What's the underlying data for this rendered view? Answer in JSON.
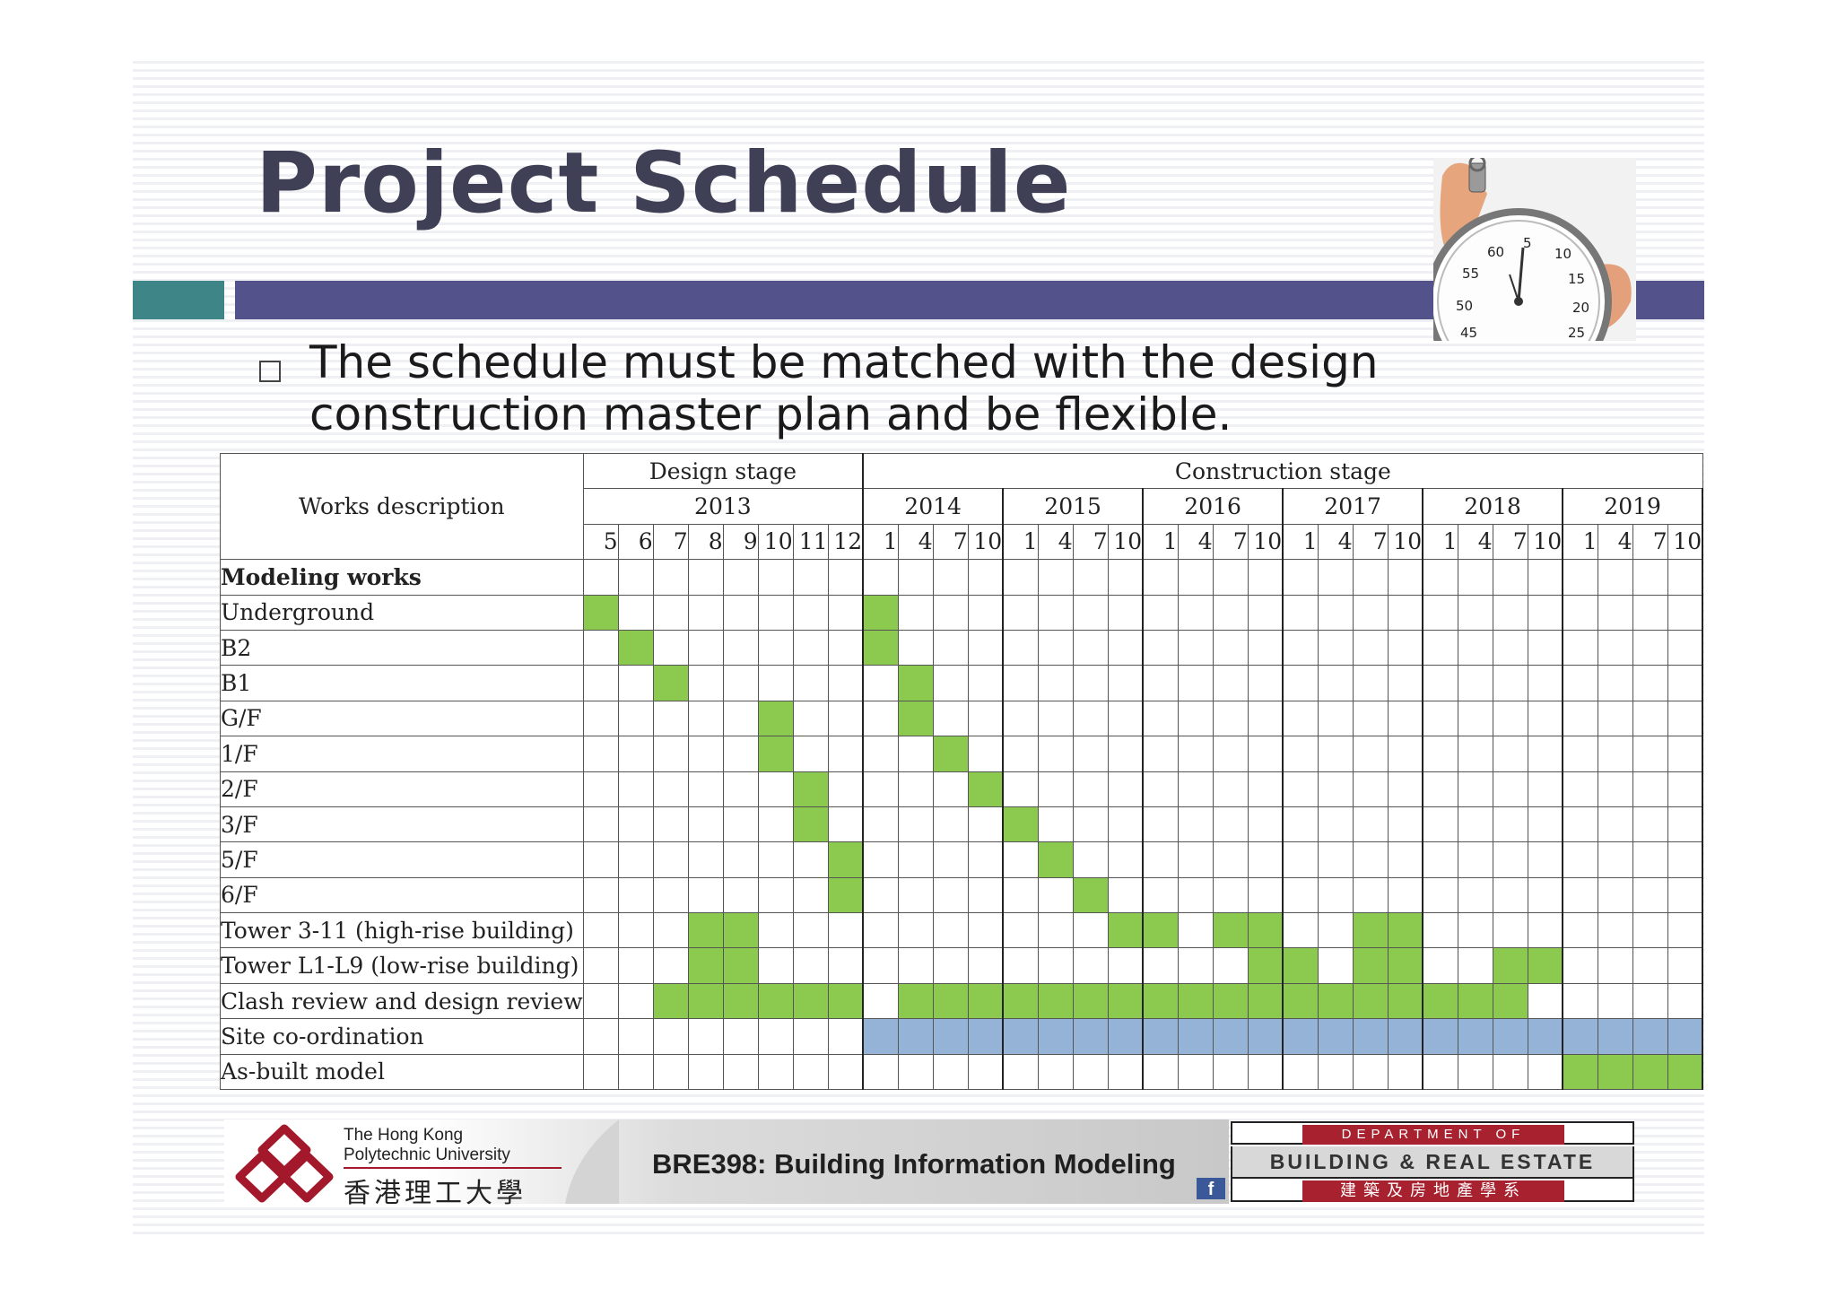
{
  "slide": {
    "title": "Project Schedule",
    "bullet": "The schedule must be matched with the design construction master plan and be flexible."
  },
  "schedule": {
    "works_description_header": "Works description",
    "design_stage_label": "Design stage",
    "construction_stage_label": "Construction stage",
    "years": [
      {
        "year": "2013",
        "months": [
          "5",
          "6",
          "7",
          "8",
          "9",
          "10",
          "11",
          "12"
        ]
      },
      {
        "year": "2014",
        "months": [
          "1",
          "4",
          "7",
          "10"
        ]
      },
      {
        "year": "2015",
        "months": [
          "1",
          "4",
          "7",
          "10"
        ]
      },
      {
        "year": "2016",
        "months": [
          "1",
          "4",
          "7",
          "10"
        ]
      },
      {
        "year": "2017",
        "months": [
          "1",
          "4",
          "7",
          "10"
        ]
      },
      {
        "year": "2018",
        "months": [
          "1",
          "4",
          "7",
          "10"
        ]
      },
      {
        "year": "2019",
        "months": [
          "1",
          "4",
          "7",
          "10"
        ]
      }
    ],
    "group_label": "Modeling works",
    "rows": [
      {
        "label": "Underground",
        "cells": "g.......g......................."
      },
      {
        "label": "B2",
        "cells": ".g......g......................."
      },
      {
        "label": "B1",
        "cells": "..g......g......................"
      },
      {
        "label": "G/F",
        "cells": ".....g...g......................"
      },
      {
        "label": "1/F",
        "cells": ".....g....g....................."
      },
      {
        "label": "2/F",
        "cells": "......g....g...................."
      },
      {
        "label": "3/F",
        "cells": "......g.....g..................."
      },
      {
        "label": "5/F",
        "cells": ".......g.....g.................."
      },
      {
        "label": "6/F",
        "cells": ".......g......g................."
      },
      {
        "label": "Tower 3-11 (high-rise building)",
        "cells": "...gg..........gg.gg..gg........"
      },
      {
        "label": "Tower L1-L9 (low-rise building)",
        "cells": "...gg..............gg.gg..gg...."
      },
      {
        "label": "Clash review and design review",
        "cells": "..gggggg.gggggggggggggggggg....."
      },
      {
        "label": "Site co-ordination",
        "cells": "........bbbbbbbbbbbbbbbbbbbbbbbb"
      },
      {
        "label": "As-built model",
        "cells": "............................gggg"
      }
    ],
    "colors": {
      "modeling": "#8cc94f",
      "site": "#95b3d7"
    }
  },
  "footer": {
    "university_en_1": "The Hong Kong",
    "university_en_2": "Polytechnic University",
    "university_zh": "香港理工大學",
    "course": "BRE398: Building Information Modeling",
    "dept_top": "DEPARTMENT OF",
    "dept_main": "BUILDING & REAL ESTATE",
    "dept_zh": "建築及房地產學系",
    "facebook_icon": "f"
  },
  "colors": {
    "title": "#3f3f55",
    "teal_bar": "#3e8587",
    "purple_bar": "#54528a",
    "polyu_red": "#a3182a"
  }
}
